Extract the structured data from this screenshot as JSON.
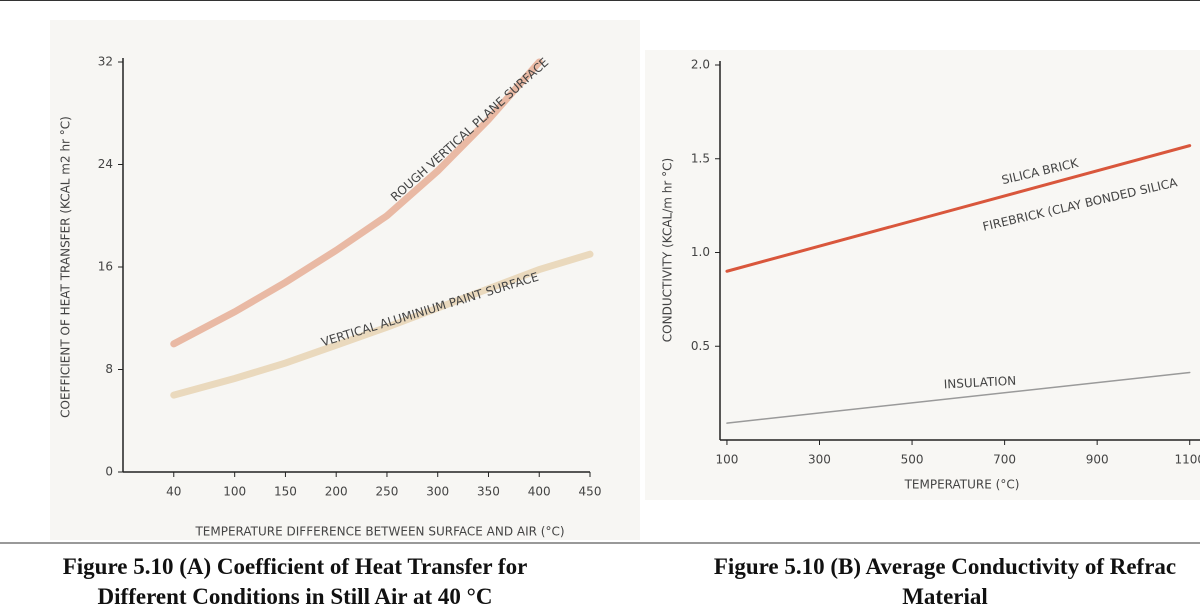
{
  "chart_data": [
    {
      "type": "line",
      "title": [
        "Figure 5.10 (A) Coefficient of Heat Transfer for",
        "Different Conditions in Still Air at 40 °C"
      ],
      "xlabel": "TEMPERATURE DIFFERENCE BETWEEN SURFACE AND AIR (°C)",
      "ylabel": "COEFFICIENT OF HEAT TRANSFER (KCAL m2 hr °C)",
      "xlim": [
        -10,
        450
      ],
      "xticks": [
        40,
        100,
        150,
        200,
        250,
        300,
        350,
        400,
        450
      ],
      "ylim": [
        0,
        32
      ],
      "yticks": [
        0,
        8,
        16,
        24,
        32
      ],
      "series": [
        {
          "name": "ROUGH VERTICAL PLANE SURFACE",
          "color": "#e9b9a4",
          "x": [
            40,
            100,
            150,
            200,
            250,
            300,
            350,
            400
          ],
          "values": [
            10,
            12.5,
            14.8,
            17.3,
            20,
            23.5,
            27.5,
            32
          ]
        },
        {
          "name": "VERTICAL ALUMINIUM PAINT SURFACE",
          "color": "#ead9bd",
          "x": [
            40,
            100,
            150,
            200,
            250,
            300,
            350,
            400,
            450
          ],
          "values": [
            6,
            7.3,
            8.5,
            9.9,
            11.3,
            12.8,
            14.3,
            15.8,
            17
          ]
        }
      ]
    },
    {
      "type": "line",
      "title": [
        "Figure 5.10 (B) Average Conductivity of Refrac",
        "Material"
      ],
      "xlabel": "TEMPERATURE (°C)",
      "ylabel": "CONDUCTIVITY (KCAL/m hr °C)",
      "xlim": [
        85,
        1200
      ],
      "xticks": [
        100,
        300,
        500,
        700,
        900,
        1100
      ],
      "ylim": [
        0,
        2
      ],
      "yticks": [
        {
          "value": 0.5,
          "label": "0.5"
        },
        {
          "value": 1,
          "label": "1.0"
        },
        1.5,
        {
          "value": 2,
          "label": "2.0"
        }
      ],
      "series": [
        {
          "name": "SILICA BRICK",
          "color": "#d9573c",
          "x": [
            100,
            1100
          ],
          "values": [
            0.9,
            1.57
          ]
        },
        {
          "name": "FIREBRICK (CLAY BONDED SILICA",
          "color": "#d9573c",
          "x": [
            100,
            1100
          ],
          "values": [
            0.9,
            1.57
          ]
        },
        {
          "name": "INSULATION",
          "color": "#9a9a9a",
          "x": [
            100,
            1100
          ],
          "values": [
            0.09,
            0.36
          ]
        }
      ]
    }
  ]
}
